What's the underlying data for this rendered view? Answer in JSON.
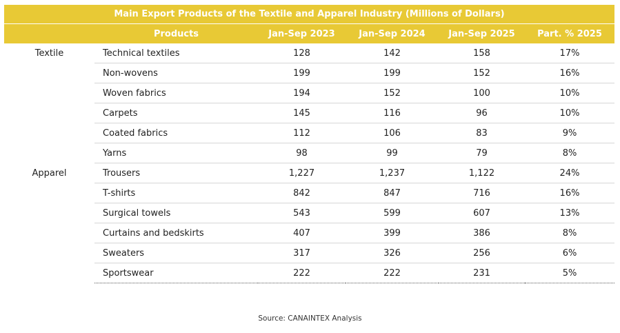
{
  "table": {
    "title": "Main Export Products of the Textile and Apparel Industry (Millions of Dollars)",
    "headers": [
      "",
      "Products",
      "Jan-Sep 2023",
      "Jan-Sep 2024",
      "Jan-Sep 2025",
      "Part. % 2025"
    ],
    "groups": [
      {
        "category": "Textile",
        "rows": [
          {
            "product": "Technical textiles",
            "y2023": "128",
            "y2024": "142",
            "y2025": "158",
            "pct": "17%"
          },
          {
            "product": "Non-wovens",
            "y2023": "199",
            "y2024": "199",
            "y2025": "152",
            "pct": "16%"
          },
          {
            "product": "Woven fabrics",
            "y2023": "194",
            "y2024": "152",
            "y2025": "100",
            "pct": "10%"
          },
          {
            "product": "Carpets",
            "y2023": "145",
            "y2024": "116",
            "y2025": "96",
            "pct": "10%"
          },
          {
            "product": "Coated fabrics",
            "y2023": "112",
            "y2024": "106",
            "y2025": "83",
            "pct": "9%"
          },
          {
            "product": "Yarns",
            "y2023": "98",
            "y2024": "99",
            "y2025": "79",
            "pct": "8%"
          }
        ]
      },
      {
        "category": "Apparel",
        "rows": [
          {
            "product": "Trousers",
            "y2023": "1,227",
            "y2024": "1,237",
            "y2025": "1,122",
            "pct": "24%"
          },
          {
            "product": "T-shirts",
            "y2023": "842",
            "y2024": "847",
            "y2025": "716",
            "pct": "16%"
          },
          {
            "product": "Surgical towels",
            "y2023": "543",
            "y2024": "599",
            "y2025": "607",
            "pct": "13%"
          },
          {
            "product": "Curtains and bedskirts",
            "y2023": "407",
            "y2024": "399",
            "y2025": "386",
            "pct": "8%"
          },
          {
            "product": "Sweaters",
            "y2023": "317",
            "y2024": "326",
            "y2025": "256",
            "pct": "6%"
          },
          {
            "product": "Sportswear",
            "y2023": "222",
            "y2024": "222",
            "y2025": "231",
            "pct": "5%"
          }
        ]
      }
    ]
  },
  "source": "Source: CANAINTEX Analysis",
  "colors": {
    "header_bg": "#e8c935",
    "header_text": "#ffffff",
    "row_divider": "#d6d6d6"
  }
}
